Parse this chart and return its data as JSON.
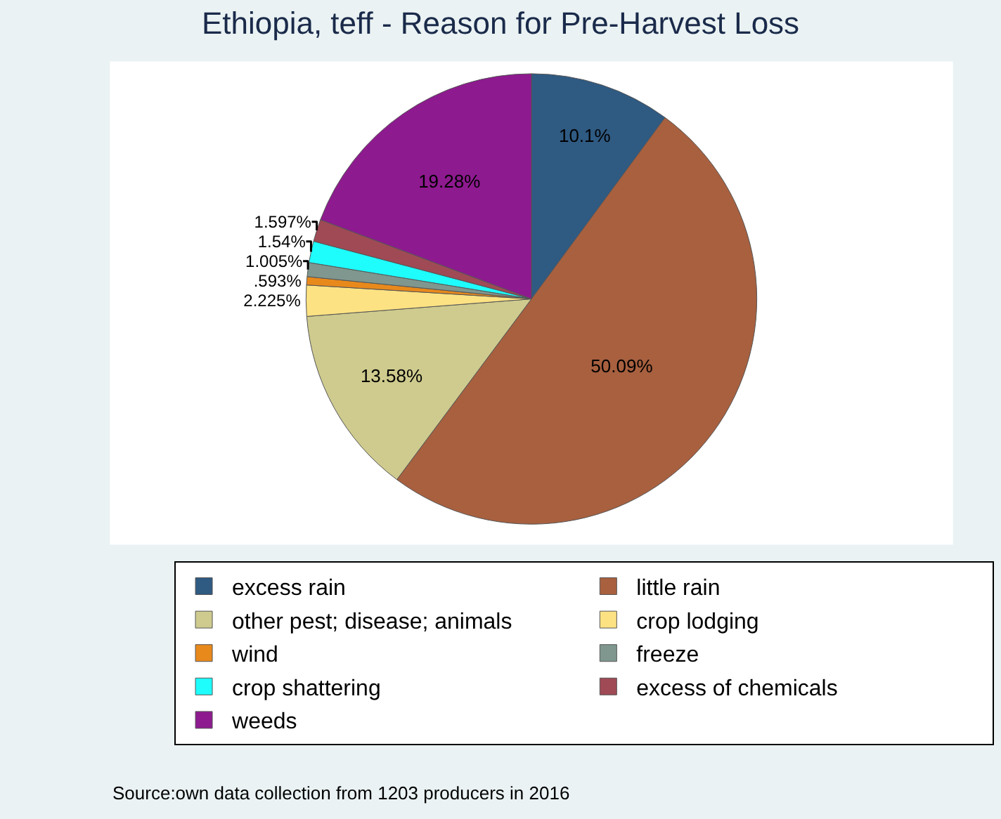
{
  "chart_data": {
    "type": "pie",
    "title": "Ethiopia, teff - Reason for Pre-Harvest Loss",
    "categories": [
      "excess rain",
      "little rain",
      "other pest; disease; animals",
      "crop lodging",
      "wind",
      "freeze",
      "crop shattering",
      "excess of chemicals",
      "weeds"
    ],
    "values": [
      10.1,
      50.09,
      13.58,
      2.225,
      0.593,
      1.005,
      1.54,
      1.597,
      19.28
    ],
    "value_labels": [
      "10.1%",
      "50.09%",
      "13.58%",
      "2.225%",
      ".593%",
      "1.005%",
      "1.54%",
      "1.597%",
      "19.28%"
    ],
    "colors": [
      "#2f5a82",
      "#a8603f",
      "#cfcb8e",
      "#fde283",
      "#e8891c",
      "#7f978f",
      "#1efcfc",
      "#9f4a55",
      "#8e1a8f"
    ],
    "legend": "bottom",
    "annotations": [
      "Source:own data collection from 1203 producers in 2016"
    ]
  }
}
